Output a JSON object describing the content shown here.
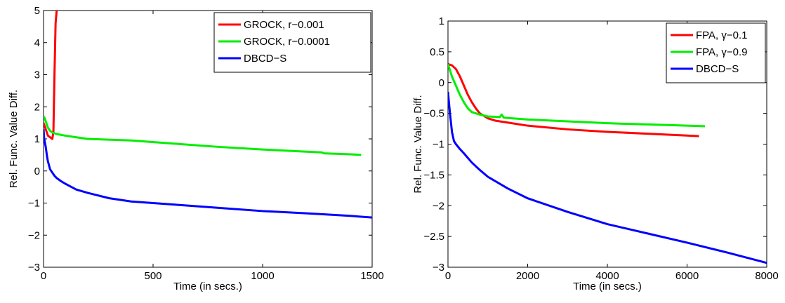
{
  "chart_data": [
    {
      "type": "line",
      "xlabel": "Time (in secs.)",
      "ylabel": "Rel. Func. Value Diff.",
      "xlim": [
        0,
        1500
      ],
      "ylim": [
        -3,
        5
      ],
      "xticks": [
        "0",
        "500",
        "1000",
        "1500"
      ],
      "yticks": [
        "−3",
        "−2",
        "−1",
        "0",
        "1",
        "2",
        "3",
        "4",
        "5"
      ],
      "xtick_values": [
        0,
        500,
        1000,
        1500
      ],
      "ytick_values": [
        -3,
        -2,
        -1,
        0,
        1,
        2,
        3,
        4,
        5
      ],
      "grid": false,
      "legend_position": "top-right",
      "series": [
        {
          "name": "GROCK, r−0.001",
          "color": "#ff0000",
          "x": [
            0,
            5,
            10,
            15,
            20,
            30,
            40,
            45,
            50,
            55,
            60
          ],
          "y": [
            1.5,
            1.4,
            1.3,
            1.2,
            1.1,
            1.05,
            1.0,
            1.2,
            3.0,
            4.6,
            5.0
          ]
        },
        {
          "name": "GROCK, r−0.0001",
          "color": "#00ee00",
          "x": [
            0,
            5,
            10,
            15,
            20,
            30,
            40,
            60,
            100,
            150,
            200,
            400,
            600,
            800,
            1000,
            1200,
            1270,
            1280,
            1400,
            1450
          ],
          "y": [
            1.7,
            1.65,
            1.55,
            1.45,
            1.35,
            1.25,
            1.2,
            1.15,
            1.1,
            1.05,
            1.0,
            0.95,
            0.85,
            0.75,
            0.67,
            0.6,
            0.58,
            0.55,
            0.52,
            0.5
          ]
        },
        {
          "name": "DBCD−S",
          "color": "#0000ff",
          "x": [
            0,
            3,
            6,
            10,
            15,
            20,
            30,
            40,
            50,
            60,
            80,
            100,
            150,
            200,
            300,
            400,
            500,
            600,
            800,
            1000,
            1200,
            1400,
            1500
          ],
          "y": [
            1.3,
            1.0,
            0.9,
            0.75,
            0.5,
            0.3,
            0.05,
            -0.05,
            -0.15,
            -0.22,
            -0.32,
            -0.4,
            -0.58,
            -0.68,
            -0.85,
            -0.95,
            -1.0,
            -1.05,
            -1.15,
            -1.25,
            -1.32,
            -1.4,
            -1.45
          ]
        }
      ]
    },
    {
      "type": "line",
      "xlabel": "Time (in secs.)",
      "ylabel": "Rel. Func. Value Diff.",
      "xlim": [
        0,
        8000
      ],
      "ylim": [
        -3,
        1
      ],
      "xticks": [
        "0",
        "2000",
        "4000",
        "6000",
        "8000"
      ],
      "yticks": [
        "−3",
        "−2.5",
        "−2",
        "−1.5",
        "−1",
        "−0.5",
        "0",
        "0.5",
        "1"
      ],
      "xtick_values": [
        0,
        2000,
        4000,
        6000,
        8000
      ],
      "ytick_values": [
        -3,
        -2.5,
        -2,
        -1.5,
        -1,
        -0.5,
        0,
        0.5,
        1
      ],
      "grid": false,
      "legend_position": "top-right",
      "series": [
        {
          "name": "FPA, γ−0.1",
          "color": "#ff0000",
          "x": [
            0,
            100,
            200,
            300,
            400,
            500,
            600,
            700,
            800,
            1000,
            1200,
            1500,
            2000,
            3000,
            4000,
            5000,
            6000,
            6300
          ],
          "y": [
            0.3,
            0.28,
            0.22,
            0.1,
            -0.05,
            -0.2,
            -0.32,
            -0.42,
            -0.5,
            -0.58,
            -0.62,
            -0.65,
            -0.7,
            -0.76,
            -0.8,
            -0.83,
            -0.86,
            -0.87
          ]
        },
        {
          "name": "FPA, γ−0.9",
          "color": "#00ee00",
          "x": [
            0,
            50,
            100,
            200,
            300,
            400,
            500,
            600,
            800,
            1000,
            1300,
            1350,
            1400,
            2000,
            3000,
            4000,
            5000,
            6000,
            6450
          ],
          "y": [
            0.3,
            0.2,
            0.1,
            -0.05,
            -0.2,
            -0.32,
            -0.42,
            -0.48,
            -0.52,
            -0.55,
            -0.56,
            -0.52,
            -0.57,
            -0.6,
            -0.63,
            -0.66,
            -0.68,
            -0.7,
            -0.71
          ]
        },
        {
          "name": "DBCD−S",
          "color": "#0000ff",
          "x": [
            0,
            50,
            100,
            150,
            200,
            300,
            400,
            600,
            800,
            1000,
            1500,
            2000,
            3000,
            4000,
            5000,
            6000,
            7000,
            8000
          ],
          "y": [
            -0.15,
            -0.5,
            -0.8,
            -0.95,
            -1.0,
            -1.08,
            -1.15,
            -1.3,
            -1.42,
            -1.53,
            -1.72,
            -1.88,
            -2.1,
            -2.3,
            -2.45,
            -2.6,
            -2.76,
            -2.93
          ]
        }
      ]
    }
  ]
}
